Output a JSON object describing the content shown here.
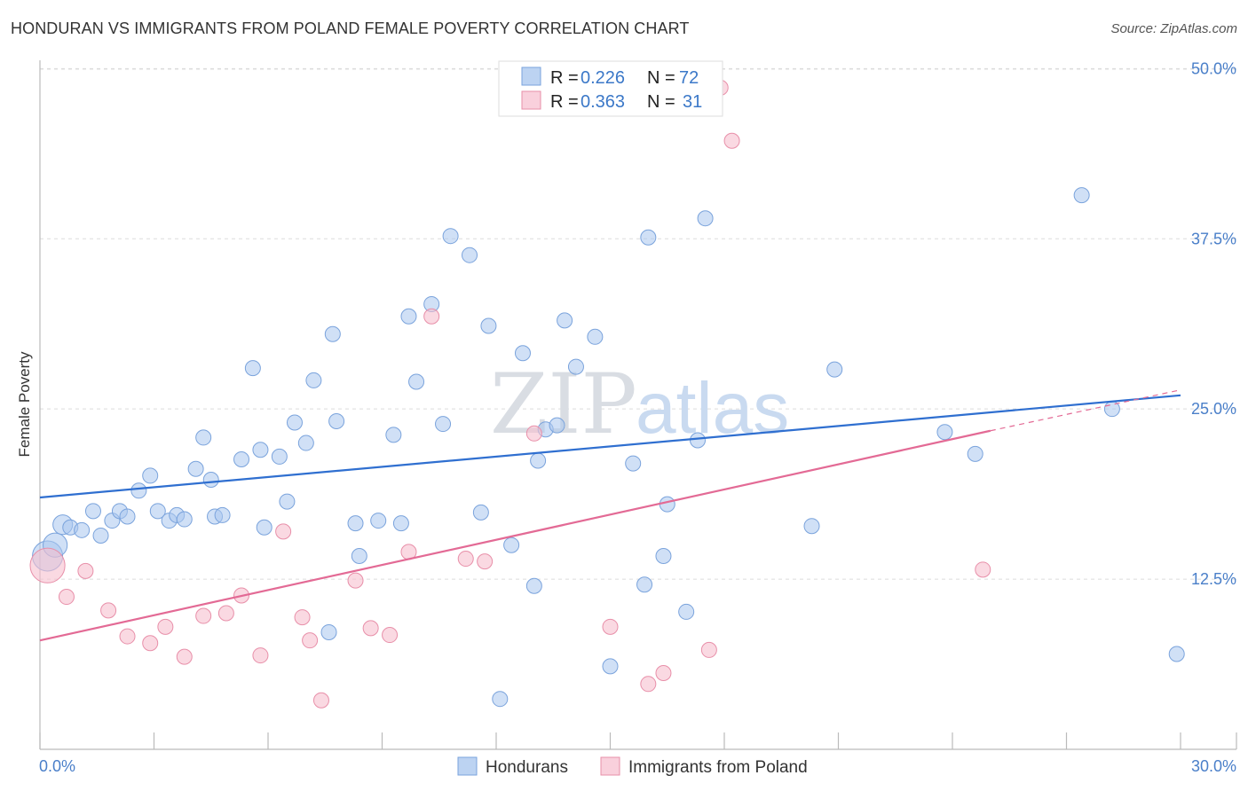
{
  "chart_data": {
    "type": "scatter",
    "title": "HONDURAN VS IMMIGRANTS FROM POLAND FEMALE POVERTY CORRELATION CHART",
    "source": "Source: ZipAtlas.com",
    "xlabel": "",
    "ylabel": "Female Poverty",
    "xlim": [
      0,
      30
    ],
    "ylim": [
      0,
      51
    ],
    "x_tick_labels": [
      "0.0%",
      "30.0%"
    ],
    "y_ticks": [
      12.5,
      25.0,
      37.5,
      50.0
    ],
    "y_tick_labels": [
      "12.5%",
      "25.0%",
      "37.5%",
      "50.0%"
    ],
    "watermark": {
      "zip": "ZIP",
      "atlas": "atlas"
    },
    "legend": {
      "r_label": "R =",
      "n_label": "N =",
      "entries": [
        {
          "r": "0.226",
          "n": "72"
        },
        {
          "r": "0.363",
          "n": "31"
        }
      ]
    },
    "series": [
      {
        "name": "Hondurans",
        "color": "#a9c6ef",
        "edge": "#7aa3dc",
        "line_color": "#2f6fd0",
        "trend": {
          "x0": 0,
          "y0": 18.5,
          "x1": 30,
          "y1": 26.0
        },
        "points": [
          {
            "x": 0.2,
            "y": 14.2,
            "s": 2
          },
          {
            "x": 0.4,
            "y": 15.0,
            "s": 1.6
          },
          {
            "x": 0.6,
            "y": 16.5,
            "s": 1.3
          },
          {
            "x": 0.8,
            "y": 16.3
          },
          {
            "x": 1.1,
            "y": 16.1
          },
          {
            "x": 1.4,
            "y": 17.5
          },
          {
            "x": 1.6,
            "y": 15.7
          },
          {
            "x": 1.9,
            "y": 16.8
          },
          {
            "x": 2.1,
            "y": 17.5
          },
          {
            "x": 2.3,
            "y": 17.1
          },
          {
            "x": 2.6,
            "y": 19.0
          },
          {
            "x": 2.9,
            "y": 20.1
          },
          {
            "x": 3.1,
            "y": 17.5
          },
          {
            "x": 3.4,
            "y": 16.8
          },
          {
            "x": 3.6,
            "y": 17.2
          },
          {
            "x": 3.8,
            "y": 16.9
          },
          {
            "x": 4.1,
            "y": 20.6
          },
          {
            "x": 4.3,
            "y": 22.9
          },
          {
            "x": 4.5,
            "y": 19.8
          },
          {
            "x": 4.6,
            "y": 17.1
          },
          {
            "x": 4.8,
            "y": 17.2
          },
          {
            "x": 5.3,
            "y": 21.3
          },
          {
            "x": 5.6,
            "y": 28.0
          },
          {
            "x": 5.8,
            "y": 22.0
          },
          {
            "x": 5.9,
            "y": 16.3
          },
          {
            "x": 6.3,
            "y": 21.5
          },
          {
            "x": 6.5,
            "y": 18.2
          },
          {
            "x": 6.7,
            "y": 24.0
          },
          {
            "x": 7.0,
            "y": 22.5
          },
          {
            "x": 7.2,
            "y": 27.1
          },
          {
            "x": 7.6,
            "y": 8.6
          },
          {
            "x": 7.7,
            "y": 30.5
          },
          {
            "x": 7.8,
            "y": 24.1
          },
          {
            "x": 8.3,
            "y": 16.6
          },
          {
            "x": 8.4,
            "y": 14.2
          },
          {
            "x": 8.9,
            "y": 16.8
          },
          {
            "x": 9.3,
            "y": 23.1
          },
          {
            "x": 9.5,
            "y": 16.6
          },
          {
            "x": 9.7,
            "y": 31.8
          },
          {
            "x": 9.9,
            "y": 27.0
          },
          {
            "x": 10.3,
            "y": 32.7
          },
          {
            "x": 10.6,
            "y": 23.9
          },
          {
            "x": 10.8,
            "y": 37.7
          },
          {
            "x": 11.3,
            "y": 36.3
          },
          {
            "x": 11.6,
            "y": 17.4
          },
          {
            "x": 11.8,
            "y": 31.1
          },
          {
            "x": 12.1,
            "y": 3.7
          },
          {
            "x": 12.4,
            "y": 15.0
          },
          {
            "x": 12.7,
            "y": 29.1
          },
          {
            "x": 13.0,
            "y": 12.0
          },
          {
            "x": 13.1,
            "y": 21.2
          },
          {
            "x": 13.3,
            "y": 23.5
          },
          {
            "x": 13.6,
            "y": 23.8
          },
          {
            "x": 13.8,
            "y": 31.5
          },
          {
            "x": 14.1,
            "y": 28.1
          },
          {
            "x": 14.6,
            "y": 30.3
          },
          {
            "x": 15.0,
            "y": 6.1
          },
          {
            "x": 15.6,
            "y": 21.0
          },
          {
            "x": 15.9,
            "y": 12.1
          },
          {
            "x": 16.0,
            "y": 37.6
          },
          {
            "x": 16.4,
            "y": 14.2
          },
          {
            "x": 16.5,
            "y": 18.0
          },
          {
            "x": 17.0,
            "y": 10.1
          },
          {
            "x": 17.3,
            "y": 22.7
          },
          {
            "x": 17.5,
            "y": 39.0
          },
          {
            "x": 20.3,
            "y": 16.4
          },
          {
            "x": 20.9,
            "y": 27.9
          },
          {
            "x": 23.8,
            "y": 23.3
          },
          {
            "x": 24.6,
            "y": 21.7
          },
          {
            "x": 27.4,
            "y": 40.7
          },
          {
            "x": 28.2,
            "y": 25.0
          },
          {
            "x": 29.9,
            "y": 7.0
          }
        ]
      },
      {
        "name": "Immigrants from Poland",
        "color": "#f7c0cf",
        "edge": "#e88fa9",
        "line_color": "#e36a95",
        "trend": {
          "x0": 0,
          "y0": 8.0,
          "x1": 25.0,
          "y1": 23.4
        },
        "trend_dashed": {
          "x0": 25.0,
          "y0": 23.4,
          "x1": 30,
          "y1": 26.4
        },
        "points": [
          {
            "x": 0.2,
            "y": 13.5,
            "s": 2.3
          },
          {
            "x": 0.7,
            "y": 11.2
          },
          {
            "x": 1.2,
            "y": 13.1
          },
          {
            "x": 1.8,
            "y": 10.2
          },
          {
            "x": 2.3,
            "y": 8.3
          },
          {
            "x": 2.9,
            "y": 7.8
          },
          {
            "x": 3.3,
            "y": 9.0
          },
          {
            "x": 3.8,
            "y": 6.8
          },
          {
            "x": 4.3,
            "y": 9.8
          },
          {
            "x": 4.9,
            "y": 10.0
          },
          {
            "x": 5.3,
            "y": 11.3
          },
          {
            "x": 5.8,
            "y": 6.9
          },
          {
            "x": 6.4,
            "y": 16.0
          },
          {
            "x": 6.9,
            "y": 9.7
          },
          {
            "x": 7.1,
            "y": 8.0
          },
          {
            "x": 7.4,
            "y": 3.6
          },
          {
            "x": 8.3,
            "y": 12.4
          },
          {
            "x": 8.7,
            "y": 8.9
          },
          {
            "x": 9.2,
            "y": 8.4
          },
          {
            "x": 9.7,
            "y": 14.5
          },
          {
            "x": 10.3,
            "y": 31.8
          },
          {
            "x": 11.2,
            "y": 14.0
          },
          {
            "x": 11.7,
            "y": 13.8
          },
          {
            "x": 13.0,
            "y": 23.2
          },
          {
            "x": 15.0,
            "y": 9.0
          },
          {
            "x": 16.0,
            "y": 4.8
          },
          {
            "x": 16.4,
            "y": 5.6
          },
          {
            "x": 17.6,
            "y": 7.3
          },
          {
            "x": 17.9,
            "y": 48.6
          },
          {
            "x": 18.2,
            "y": 44.7
          },
          {
            "x": 24.8,
            "y": 13.2
          }
        ]
      }
    ]
  }
}
